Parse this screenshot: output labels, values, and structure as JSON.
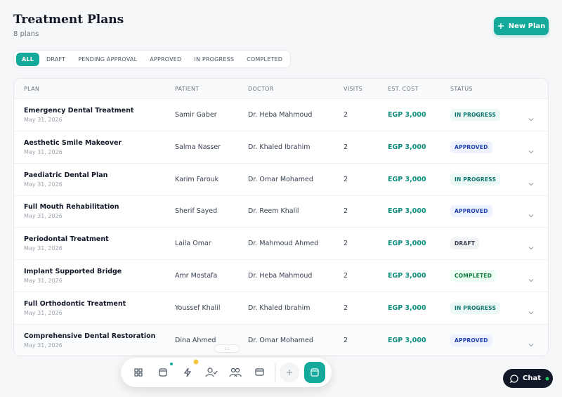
{
  "header": {
    "title": "Treatment Plans",
    "subtitle": "8 plans",
    "button": "New Plan"
  },
  "tabs": [
    "ALL",
    "DRAFT",
    "PENDING APPROVAL",
    "APPROVED",
    "IN PROGRESS",
    "COMPLETED"
  ],
  "table": {
    "columns": [
      "PLAN",
      "PATIENT",
      "DOCTOR",
      "VISITS",
      "EST. COST",
      "STATUS"
    ],
    "rows": [
      {
        "plan": "Emergency Dental Treatment",
        "date": "May 31, 2026",
        "patient": "Samir Gaber",
        "doctor": "Dr. Heba Mahmoud",
        "visits": "2",
        "cost": "EGP 3,000",
        "status": "IN PROGRESS"
      },
      {
        "plan": "Aesthetic Smile Makeover",
        "date": "May 31, 2026",
        "patient": "Salma Nasser",
        "doctor": "Dr. Khaled Ibrahim",
        "visits": "2",
        "cost": "EGP 3,000",
        "status": "APPROVED"
      },
      {
        "plan": "Paediatric Dental Plan",
        "date": "May 31, 2026",
        "patient": "Karim Farouk",
        "doctor": "Dr. Omar Mohamed",
        "visits": "2",
        "cost": "EGP 3,000",
        "status": "IN PROGRESS"
      },
      {
        "plan": "Full Mouth Rehabilitation",
        "date": "May 31, 2026",
        "patient": "Sherif Sayed",
        "doctor": "Dr. Reem Khalil",
        "visits": "2",
        "cost": "EGP 3,000",
        "status": "APPROVED"
      },
      {
        "plan": "Periodontal Treatment",
        "date": "May 31, 2026",
        "patient": "Laila Omar",
        "doctor": "Dr. Mahmoud Ahmed",
        "visits": "2",
        "cost": "EGP 3,000",
        "status": "DRAFT"
      },
      {
        "plan": "Implant Supported Bridge",
        "date": "May 31, 2026",
        "patient": "Amr Mostafa",
        "doctor": "Dr. Heba Mahmoud",
        "visits": "2",
        "cost": "EGP 3,000",
        "status": "COMPLETED"
      },
      {
        "plan": "Full Orthodontic Treatment",
        "date": "May 31, 2026",
        "patient": "Youssef Khalil",
        "doctor": "Dr. Khaled Ibrahim",
        "visits": "2",
        "cost": "EGP 3,000",
        "status": "IN PROGRESS"
      },
      {
        "plan": "Comprehensive Dental Restoration",
        "date": "May 31, 2026",
        "patient": "Dina Ahmed",
        "doctor": "Dr. Omar Mohamed",
        "visits": "2",
        "cost": "EGP 3,000",
        "status": "APPROVED"
      }
    ]
  },
  "chat": "Chat"
}
